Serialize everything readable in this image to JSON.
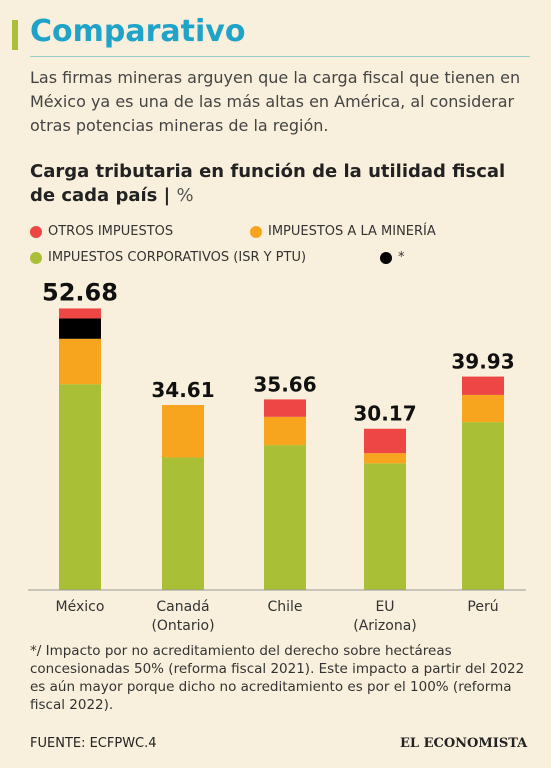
{
  "header": "Comparativo",
  "intro": "Las firmas mineras arguyen que la carga fiscal que tienen en México ya es una de las más altas en América, al considerar otras potencias mineras de la región.",
  "chart_data": {
    "type": "bar",
    "stacked": true,
    "title": "Carga tributaria en función de la utilidad fiscal de cada país",
    "unit": "%",
    "categories": [
      "México",
      "Canadá",
      "Chile",
      "EU",
      "Perú"
    ],
    "category_notes": [
      null,
      "(Ontario)",
      null,
      "(Arizona)",
      null
    ],
    "series": [
      {
        "name": "IMPUESTOS CORPORATIVOS (ISR Y PTU)",
        "color": "#a9bf35",
        "values": [
          38.5,
          24.8,
          27.1,
          23.7,
          31.4
        ]
      },
      {
        "name": "IMPUESTOS A LA MINERÍA",
        "color": "#f7a51e",
        "values": [
          8.5,
          9.81,
          5.3,
          1.9,
          5.1
        ]
      },
      {
        "name": "*",
        "color": "#000000",
        "values": [
          3.8,
          0,
          0,
          0,
          0
        ]
      },
      {
        "name": "OTROS IMPUESTOS",
        "color": "#ee4545",
        "values": [
          1.88,
          0,
          3.26,
          4.57,
          3.43
        ]
      }
    ],
    "totals": [
      52.68,
      34.61,
      35.66,
      30.17,
      39.93
    ],
    "ylim": [
      0,
      58
    ]
  },
  "footnote": "*/ Impacto por no acreditamiento del derecho sobre hectáreas concesionadas 50% (reforma fiscal 2021). Este impacto a partir del 2022 es aún mayor porque dicho no acreditamiento es por el 100% (reforma fiscal 2022).",
  "source": "FUENTE: ECFPWC.4",
  "brand": "EL ECONOMISTA"
}
